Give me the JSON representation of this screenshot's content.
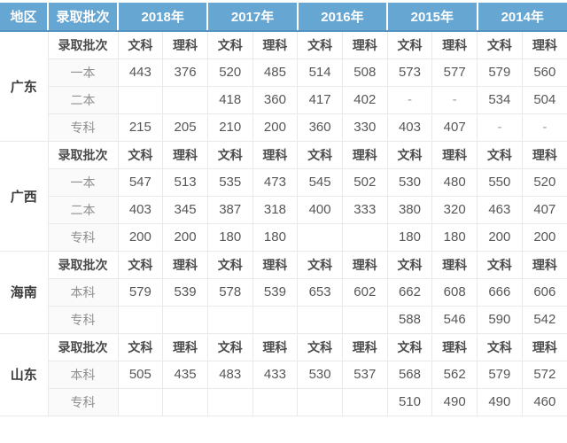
{
  "chart_data": {
    "type": "table",
    "header": {
      "region": "地区",
      "batch": "录取批次",
      "years": [
        "2018年",
        "2017年",
        "2016年",
        "2015年",
        "2014年"
      ],
      "subjects": [
        "文科",
        "理科"
      ]
    },
    "sections": [
      {
        "region": "广东",
        "subheader_label": "录取批次",
        "rows": [
          {
            "batch": "一本",
            "values": [
              "443",
              "376",
              "520",
              "485",
              "514",
              "508",
              "573",
              "577",
              "579",
              "560"
            ]
          },
          {
            "batch": "二本",
            "values": [
              "",
              "",
              "418",
              "360",
              "417",
              "402",
              "-",
              "-",
              "534",
              "504"
            ]
          },
          {
            "batch": "专科",
            "values": [
              "215",
              "205",
              "210",
              "200",
              "360",
              "330",
              "403",
              "407",
              "-",
              "-"
            ]
          }
        ]
      },
      {
        "region": "广西",
        "subheader_label": "录取批次",
        "rows": [
          {
            "batch": "一本",
            "values": [
              "547",
              "513",
              "535",
              "473",
              "545",
              "502",
              "530",
              "480",
              "550",
              "520"
            ]
          },
          {
            "batch": "二本",
            "values": [
              "403",
              "345",
              "387",
              "318",
              "400",
              "333",
              "380",
              "320",
              "463",
              "407"
            ]
          },
          {
            "batch": "专科",
            "values": [
              "200",
              "200",
              "180",
              "180",
              "",
              "",
              "180",
              "180",
              "200",
              "200"
            ]
          }
        ]
      },
      {
        "region": "海南",
        "subheader_label": "录取批次",
        "rows": [
          {
            "batch": "本科",
            "values": [
              "579",
              "539",
              "578",
              "539",
              "653",
              "602",
              "662",
              "608",
              "666",
              "606"
            ]
          },
          {
            "batch": "专科",
            "values": [
              "",
              "",
              "",
              "",
              "",
              "",
              "588",
              "546",
              "590",
              "542"
            ]
          }
        ]
      },
      {
        "region": "山东",
        "subheader_label": "录取批次",
        "rows": [
          {
            "batch": "本科",
            "values": [
              "505",
              "435",
              "483",
              "433",
              "530",
              "537",
              "568",
              "562",
              "579",
              "572"
            ]
          },
          {
            "batch": "专科",
            "values": [
              "",
              "",
              "",
              "",
              "",
              "",
              "510",
              "490",
              "490",
              "460"
            ]
          }
        ]
      }
    ],
    "colors": {
      "header_bg": "#66a6d2",
      "header_bottom_rule": "#5391c1",
      "header_text": "#ffffff",
      "grid_line": "#e9e9e9",
      "score_text": "#575757",
      "batch_text": "#8f8f8f",
      "region_text": "#3d3d3d",
      "batch_column_bg": "#fafafa"
    }
  }
}
